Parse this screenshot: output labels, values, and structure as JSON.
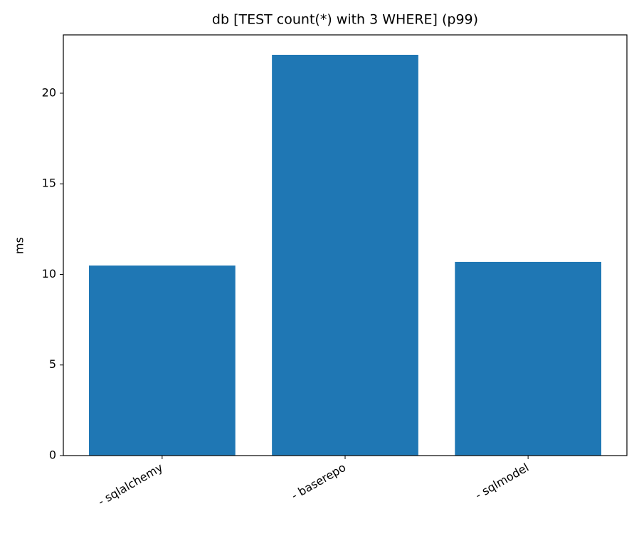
{
  "chart_data": {
    "type": "bar",
    "title": "db [TEST count(*) with 3 WHERE] (p99)",
    "y_label": "ms",
    "categories": [
      "- sqlalchemy",
      "- baserepo",
      "- sqlmodel"
    ],
    "values": [
      10.49,
      22.12,
      10.69
    ],
    "color": "#1f77b4",
    "ylim": [
      0,
      23.22
    ],
    "yticks": [
      0,
      5,
      10,
      15,
      20
    ]
  }
}
